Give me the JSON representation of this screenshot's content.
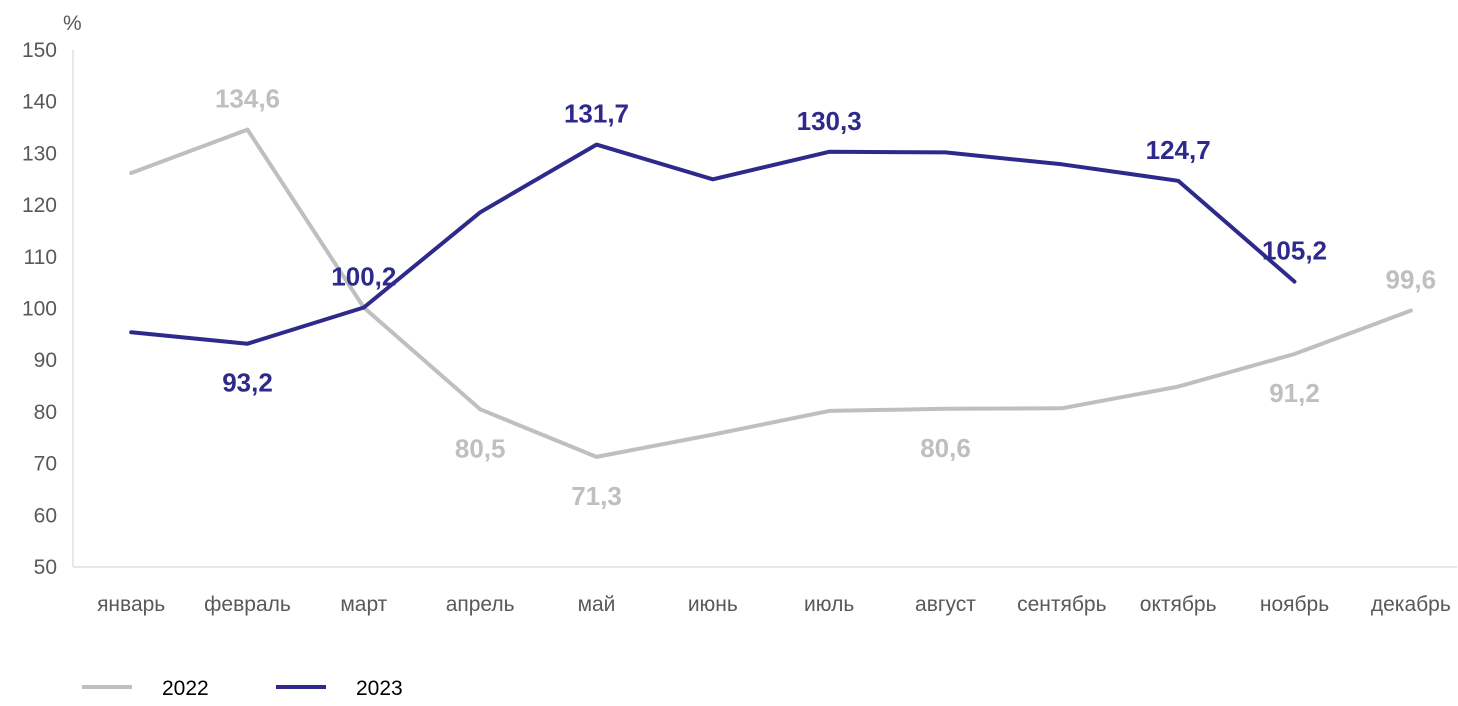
{
  "chart_data": {
    "type": "line",
    "y_unit": "%",
    "ylim": [
      50,
      150
    ],
    "y_ticks": [
      50,
      60,
      70,
      80,
      90,
      100,
      110,
      120,
      130,
      140,
      150
    ],
    "grid": false,
    "legend_position": "bottom-left",
    "categories": [
      "январь",
      "февраль",
      "март",
      "апрель",
      "май",
      "июнь",
      "июль",
      "август",
      "сентябрь",
      "октябрь",
      "ноябрь",
      "декабрь"
    ],
    "series": [
      {
        "name": "2022",
        "color": "#BFBFBF",
        "values": [
          126.2,
          134.6,
          100.2,
          80.5,
          71.3,
          75.6,
          80.2,
          80.6,
          80.7,
          84.9,
          91.2,
          99.6
        ],
        "labels": [
          {
            "index": 1,
            "text": "134,6",
            "position": "above"
          },
          {
            "index": 3,
            "text": "80,5",
            "position": "below"
          },
          {
            "index": 4,
            "text": "71,3",
            "position": "below"
          },
          {
            "index": 7,
            "text": "80,6",
            "position": "below"
          },
          {
            "index": 10,
            "text": "91,2",
            "position": "below"
          },
          {
            "index": 11,
            "text": "99,6",
            "position": "above"
          }
        ]
      },
      {
        "name": "2023",
        "color": "#2E2A8C",
        "values": [
          95.4,
          93.2,
          100.2,
          118.6,
          131.7,
          125.0,
          130.3,
          130.2,
          127.9,
          124.7,
          105.2,
          null
        ],
        "labels": [
          {
            "index": 1,
            "text": "93,2",
            "position": "below"
          },
          {
            "index": 2,
            "text": "100,2",
            "position": "above"
          },
          {
            "index": 4,
            "text": "131,7",
            "position": "above"
          },
          {
            "index": 6,
            "text": "130,3",
            "position": "above"
          },
          {
            "index": 9,
            "text": "124,7",
            "position": "above"
          },
          {
            "index": 10,
            "text": "105,2",
            "position": "above"
          }
        ]
      }
    ]
  }
}
